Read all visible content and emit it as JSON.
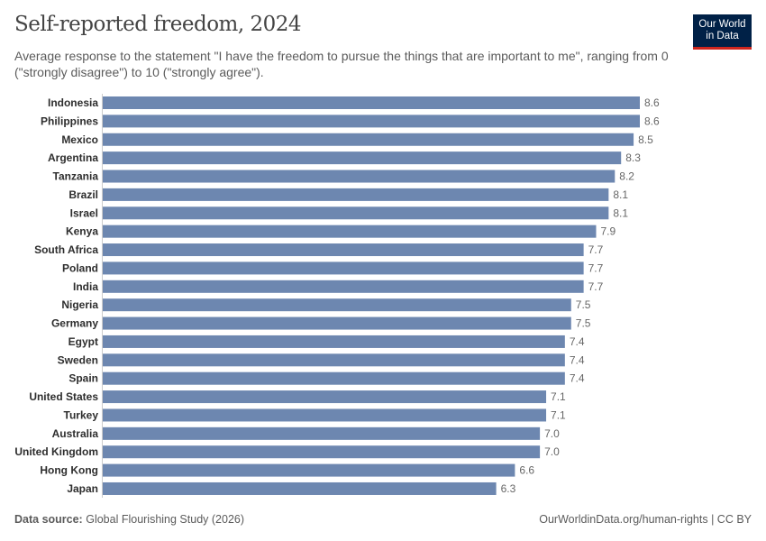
{
  "header": {
    "title": "Self-reported freedom, 2024",
    "subtitle": "Average response to the statement \"I have the freedom to pursue the things that are important to me\", ranging from 0 (\"strongly disagree\") to 10 (\"strongly agree\").",
    "logo_line1": "Our World",
    "logo_line2": "in Data"
  },
  "footer": {
    "source_label": "Data source:",
    "source_value": "Global Flourishing Study (2026)",
    "right": "OurWorldinData.org/human-rights | CC BY"
  },
  "colors": {
    "bar": "#6d87b0",
    "logo_bg": "#002147",
    "logo_accent": "#ce261e"
  },
  "chart_data": {
    "type": "bar",
    "orientation": "horizontal",
    "title": "Self-reported freedom, 2024",
    "categories": [
      "Indonesia",
      "Philippines",
      "Mexico",
      "Argentina",
      "Tanzania",
      "Brazil",
      "Israel",
      "Kenya",
      "South Africa",
      "Poland",
      "India",
      "Nigeria",
      "Germany",
      "Egypt",
      "Sweden",
      "Spain",
      "United States",
      "Turkey",
      "Australia",
      "United Kingdom",
      "Hong Kong",
      "Japan"
    ],
    "values": [
      8.6,
      8.6,
      8.5,
      8.3,
      8.2,
      8.1,
      8.1,
      7.9,
      7.7,
      7.7,
      7.7,
      7.5,
      7.5,
      7.4,
      7.4,
      7.4,
      7.1,
      7.1,
      7.0,
      7.0,
      6.6,
      6.3
    ],
    "xlim": [
      0,
      8.6
    ],
    "grid": false,
    "data_labels": true
  }
}
